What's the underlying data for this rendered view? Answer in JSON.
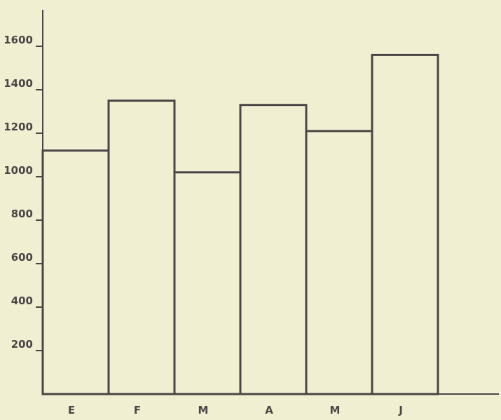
{
  "chart_data": {
    "type": "bar",
    "categories": [
      "E",
      "F",
      "M",
      "A",
      "M",
      "J"
    ],
    "values": [
      1120,
      1350,
      1020,
      1330,
      1210,
      1560
    ],
    "ylim": [
      0,
      1700
    ],
    "yticks": [
      200,
      400,
      600,
      800,
      1000,
      1200,
      1400,
      1600
    ],
    "ytick_labels": [
      "200",
      "400",
      "600",
      "800",
      "1000",
      "1200",
      "1400",
      "1600"
    ],
    "title": "",
    "xlabel": "",
    "ylabel": "",
    "grid": false,
    "bar_style": "outline",
    "colors": {
      "background": "#f1efd2",
      "ink": "#4a4646",
      "bar_fill": "#ffffff"
    }
  }
}
